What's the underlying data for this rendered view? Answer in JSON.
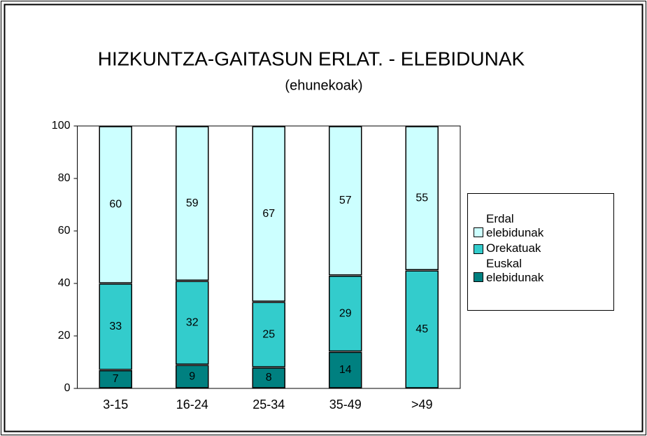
{
  "chart_data": {
    "type": "stacked_bar",
    "title": "HIZKUNTZA-GAITASUN ERLAT. - ELEBIDUNAK",
    "subtitle": "(ehunekoak)",
    "categories": [
      "3-15",
      "16-24",
      "25-34",
      "35-49",
      ">49"
    ],
    "series": [
      {
        "name": "Euskal elebidunak",
        "color": "#008080",
        "values": [
          7,
          9,
          8,
          14,
          null
        ]
      },
      {
        "name": "Orekatuak",
        "color": "#33cccc",
        "values": [
          33,
          32,
          25,
          29,
          45
        ]
      },
      {
        "name": "Erdal elebidunak",
        "color": "#ccffff",
        "values": [
          60,
          59,
          67,
          57,
          55
        ]
      }
    ],
    "ylim": [
      0,
      100
    ],
    "yticks": [
      0,
      20,
      40,
      60,
      80,
      100
    ],
    "legend": "right"
  }
}
